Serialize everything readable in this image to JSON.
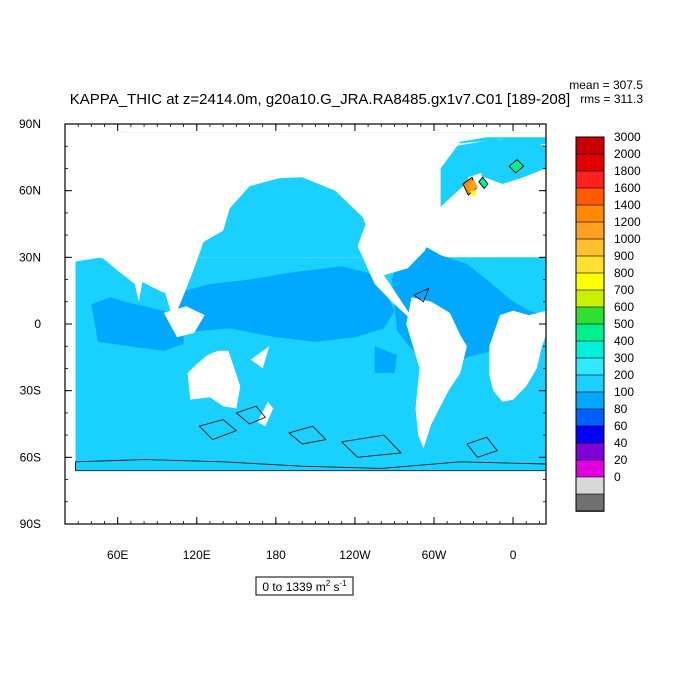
{
  "chart_data": {
    "type": "heatmap",
    "title": "KAPPA_THIC at z=2414.0m, g20a10.G_JRA.RA8485.gx1v7.C01 [189-208]",
    "stats": {
      "mean_label": "mean = 307.5",
      "rms_label": "rms = 311.3"
    },
    "range_label": {
      "prefix": "0 to 1339 m",
      "sup1": "2",
      "mid": " s",
      "sup2": "-1"
    },
    "x_ticks": [
      {
        "lon": 60,
        "label": "60E"
      },
      {
        "lon": 120,
        "label": "120E"
      },
      {
        "lon": 180,
        "label": "180"
      },
      {
        "lon": 240,
        "label": "120W"
      },
      {
        "lon": 300,
        "label": "60W"
      },
      {
        "lon": 360,
        "label": "0"
      }
    ],
    "y_ticks": [
      {
        "lat": 90,
        "label": "90N"
      },
      {
        "lat": 60,
        "label": "60N"
      },
      {
        "lat": 30,
        "label": "30N"
      },
      {
        "lat": 0,
        "label": "0"
      },
      {
        "lat": -30,
        "label": "30S"
      },
      {
        "lat": -60,
        "label": "60S"
      },
      {
        "lat": -90,
        "label": "90S"
      }
    ],
    "xlim": [
      20,
      385
    ],
    "ylim": [
      -90,
      90
    ],
    "colorbar": {
      "levels": [
        "3000",
        "2000",
        "1800",
        "1600",
        "1400",
        "1200",
        "1000",
        "900",
        "800",
        "700",
        "600",
        "500",
        "400",
        "300",
        "200",
        "100",
        "80",
        "60",
        "40",
        "20",
        "0"
      ],
      "colors": [
        "#c80000",
        "#e00000",
        "#ff2020",
        "#ff5a00",
        "#ff8a00",
        "#ffa020",
        "#ffc030",
        "#ffe030",
        "#ffff00",
        "#c8f000",
        "#30e030",
        "#00f090",
        "#00f0d8",
        "#30e8ff",
        "#1ad0ff",
        "#00a8ff",
        "#0060ff",
        "#0000ff",
        "#8000d8",
        "#e000e0",
        "#d8d8d8",
        "#707070"
      ]
    },
    "field_colors": {
      "land": "#ffffff",
      "level_300_400": "#1ad0ff",
      "level_200_300": "#00a8ff",
      "level_100_200": "#0060ff",
      "level_500_600": "#00f0d8",
      "level_600_700": "#00f090",
      "level_800_900": "#ffff00",
      "level_1200_1400": "#ffa020",
      "level_1400_1600": "#ff8a00"
    }
  }
}
